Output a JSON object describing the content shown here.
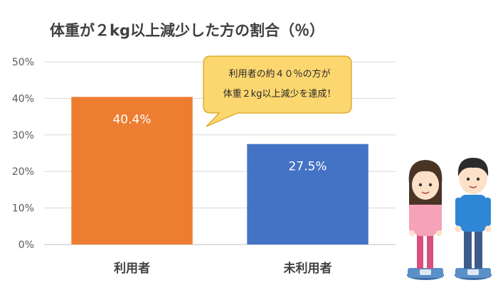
{
  "chart_data": {
    "type": "bar",
    "title": "体重が２kg以上減少した方の割合（％）",
    "categories": [
      "利用者",
      "未利用者"
    ],
    "values": [
      40.4,
      27.5
    ],
    "data_labels": [
      "40.4%",
      "27.5%"
    ],
    "y_ticks": [
      "0%",
      "10%",
      "20%",
      "30%",
      "40%",
      "50%"
    ],
    "ylim": [
      0,
      50
    ],
    "grid": true,
    "bar_colors": [
      "#ed7d31",
      "#4472c4"
    ],
    "annotation": {
      "lines": [
        "利用者の約４０％の方が",
        "体重２kg以上減少を達成！"
      ],
      "fill": "#fcd770",
      "stroke": "#d4a017",
      "target": "利用者"
    }
  }
}
